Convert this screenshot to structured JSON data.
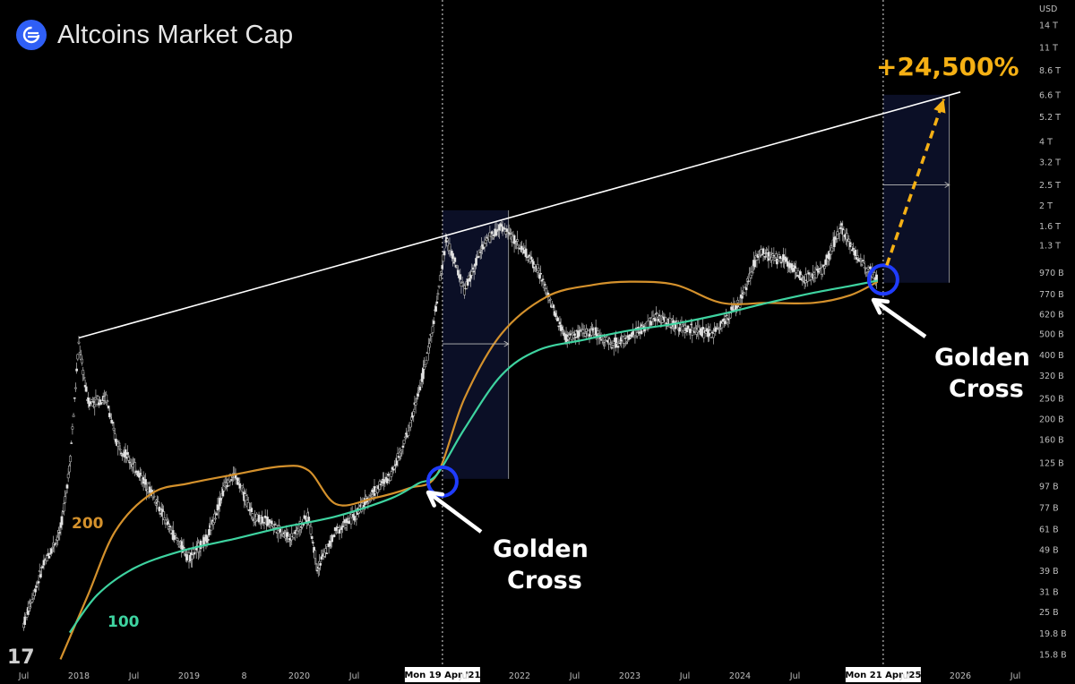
{
  "header": {
    "title": "Altcoins Market Cap"
  },
  "chart_data": {
    "type": "line",
    "title": "Altcoins Market Cap",
    "currency_label": "USD",
    "y_scale": "log",
    "y_ticks": [
      "14 T",
      "11 T",
      "8.6 T",
      "6.6 T",
      "5.2 T",
      "4 T",
      "3.2 T",
      "2.5 T",
      "2 T",
      "1.6 T",
      "1.3 T",
      "970 B",
      "770 B",
      "620 B",
      "500 B",
      "400 B",
      "320 B",
      "250 B",
      "200 B",
      "160 B",
      "125 B",
      "97 B",
      "77 B",
      "61 B",
      "49 B",
      "39 B",
      "31 B",
      "25 B",
      "19.8 B",
      "15.8 B"
    ],
    "x_ticks": [
      "Jul",
      "2018",
      "Jul",
      "2019",
      "8",
      "2020",
      "Jul",
      "Mon 19 Apr '21",
      "Jul",
      "2022",
      "Jul",
      "2023",
      "Jul",
      "2024",
      "Jul",
      "Mon 21 Apr '25",
      "Jul",
      "2026",
      "Jul"
    ],
    "highlighted_dates": [
      "Mon 19 Apr '21",
      "Mon 21 Apr '25"
    ],
    "series": [
      {
        "name": "Altcoins Market Cap",
        "kind": "price",
        "color": "#cfcfcf",
        "x": [
          "2017-07",
          "2017-09",
          "2017-11",
          "2017-12",
          "2018-01",
          "2018-02",
          "2018-04",
          "2018-05",
          "2018-07",
          "2018-09",
          "2018-11",
          "2019-01",
          "2019-03",
          "2019-05",
          "2019-06",
          "2019-08",
          "2019-10",
          "2019-12",
          "2020-02",
          "2020-03",
          "2020-05",
          "2020-07",
          "2020-09",
          "2020-11",
          "2021-01",
          "2021-03",
          "2021-04",
          "2021-05",
          "2021-07",
          "2021-09",
          "2021-11",
          "2022-01",
          "2022-03",
          "2022-05",
          "2022-06",
          "2022-09",
          "2022-11",
          "2023-01",
          "2023-04",
          "2023-07",
          "2023-10",
          "2024-01",
          "2024-03",
          "2024-06",
          "2024-08",
          "2024-10",
          "2024-12",
          "2025-02",
          "2025-04"
        ],
        "y": [
          "22 B",
          "40 B",
          "60 B",
          "120 B",
          "450 B",
          "240 B",
          "250 B",
          "160 B",
          "120 B",
          "90 B",
          "60 B",
          "45 B",
          "55 B",
          "100 B",
          "110 B",
          "70 B",
          "65 B",
          "55 B",
          "70 B",
          "40 B",
          "60 B",
          "70 B",
          "90 B",
          "110 B",
          "180 B",
          "400 B",
          "700 B",
          "1.4 T",
          "800 B",
          "1.3 T",
          "1.6 T",
          "1.3 T",
          "1 T",
          "600 B",
          "480 B",
          "520 B",
          "450 B",
          "480 B",
          "600 B",
          "530 B",
          "500 B",
          "700 B",
          "1.2 T",
          "1.1 T",
          "900 B",
          "1 T",
          "1.6 T",
          "1.1 T",
          "900 B"
        ]
      },
      {
        "name": "200",
        "kind": "moving_average",
        "color": "#d4912c",
        "x": [
          "2017-11",
          "2018-02",
          "2018-05",
          "2018-09",
          "2019-01",
          "2019-06",
          "2019-11",
          "2020-02",
          "2020-05",
          "2020-09",
          "2021-01",
          "2021-04",
          "2021-07",
          "2021-11",
          "2022-04",
          "2022-09",
          "2023-01",
          "2023-06",
          "2023-11",
          "2024-04",
          "2024-09",
          "2025-01",
          "2025-04"
        ],
        "y": [
          "15 B",
          "30 B",
          "60 B",
          "90 B",
          "100 B",
          "110 B",
          "120 B",
          "115 B",
          "80 B",
          "85 B",
          "95 B",
          "110 B",
          "250 B",
          "500 B",
          "750 B",
          "850 B",
          "880 B",
          "850 B",
          "700 B",
          "700 B",
          "700 B",
          "760 B",
          "880 B"
        ]
      },
      {
        "name": "100",
        "kind": "moving_average",
        "color": "#3ed3a0",
        "x": [
          "2017-12",
          "2018-03",
          "2018-07",
          "2018-12",
          "2019-06",
          "2019-11",
          "2020-05",
          "2020-11",
          "2021-02",
          "2021-04",
          "2021-07",
          "2021-11",
          "2022-03",
          "2022-08",
          "2023-01",
          "2023-06",
          "2023-11",
          "2024-04",
          "2024-09",
          "2025-01",
          "2025-04"
        ],
        "y": [
          "20 B",
          "30 B",
          "40 B",
          "48 B",
          "55 B",
          "62 B",
          "70 B",
          "85 B",
          "100 B",
          "110 B",
          "180 B",
          "320 B",
          "420 B",
          "470 B",
          "520 B",
          "560 B",
          "620 B",
          "700 B",
          "780 B",
          "840 B",
          "890 B"
        ]
      }
    ],
    "trendline": {
      "from": {
        "x": "2018-01",
        "y": "480 B"
      },
      "to": {
        "x": "2026-01",
        "y": "6.8 T"
      }
    },
    "annotations": {
      "golden_cross_1": {
        "line1": "Golden",
        "line2": "Cross",
        "date": "Mon 19 Apr '21"
      },
      "golden_cross_2": {
        "line1": "Golden",
        "line2": "Cross",
        "date": "Mon 21 Apr '25"
      },
      "target": {
        "label": "+24,500%",
        "color": "#f5b014"
      },
      "ma_labels": {
        "ma200": "200",
        "ma100": "100"
      }
    },
    "colors": {
      "background": "#000000",
      "ma200": "#d4912c",
      "ma100": "#3ed3a0",
      "circle": "#1f3cff",
      "target": "#f5b014",
      "trendline": "#ffffff"
    },
    "tradingview_mark": "17"
  }
}
